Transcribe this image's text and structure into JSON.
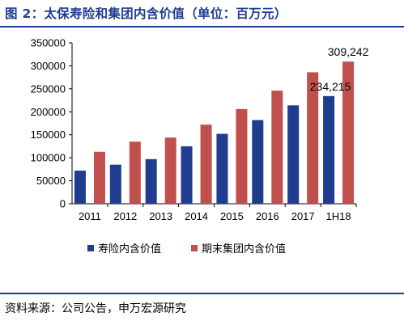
{
  "header": {
    "title": "图 2：太保寿险和集团内含价值（单位：百万元）"
  },
  "footer": {
    "source": "资料来源：公司公告，申万宏源研究"
  },
  "colors": {
    "accent": "#1f3c8f",
    "series1": "#1f3c8f",
    "series2": "#c0504d"
  },
  "chart_data": {
    "type": "bar",
    "title": "",
    "xlabel": "",
    "ylabel": "",
    "categories": [
      "2011",
      "2012",
      "2013",
      "2014",
      "2015",
      "2016",
      "2017",
      "1H18"
    ],
    "ylim": [
      0,
      350000
    ],
    "yticks": [
      0,
      50000,
      100000,
      150000,
      200000,
      250000,
      300000,
      350000
    ],
    "grid": false,
    "legend": "bottom",
    "series": [
      {
        "name": "寿险内含价值",
        "values": [
          72000,
          85000,
          97000,
          125000,
          152000,
          182000,
          214000,
          234215
        ]
      },
      {
        "name": "期末集团内含价值",
        "values": [
          113000,
          135000,
          144000,
          172000,
          206000,
          246000,
          286000,
          309242
        ]
      }
    ],
    "annotations": [
      {
        "series": 0,
        "category": "1H18",
        "text": "234,215"
      },
      {
        "series": 1,
        "category": "1H18",
        "text": "309,242"
      }
    ]
  }
}
